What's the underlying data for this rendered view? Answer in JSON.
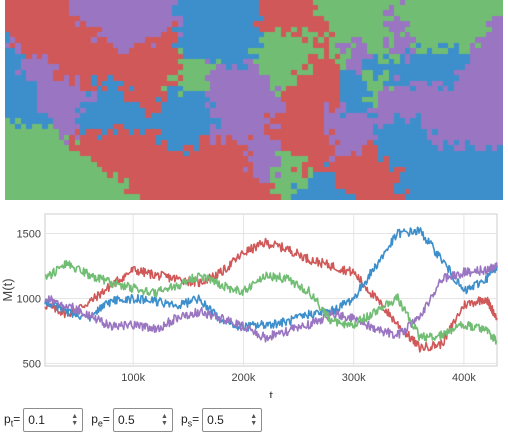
{
  "grid": {
    "palette": [
      "#d05858",
      "#3d8fcc",
      "#9a75c2",
      "#71bd73"
    ],
    "cols": 92,
    "rows": 37
  },
  "chart_data": {
    "type": "line",
    "title": "",
    "xlabel": "t",
    "ylabel": "M(t)",
    "xlim": [
      20000,
      430000
    ],
    "ylim": [
      480,
      1650
    ],
    "x_ticks": [
      100000,
      200000,
      300000,
      400000
    ],
    "x_tick_labels": [
      "100k",
      "200k",
      "300k",
      "400k"
    ],
    "y_ticks": [
      500,
      1000,
      1500
    ],
    "y_tick_labels": [
      "500",
      "1000",
      "1500"
    ],
    "grid": true,
    "legend": "none",
    "series": [
      {
        "color": "#d05858",
        "x": [
          20000,
          40000,
          60000,
          80000,
          100000,
          120000,
          140000,
          160000,
          180000,
          200000,
          220000,
          240000,
          260000,
          280000,
          300000,
          320000,
          340000,
          360000,
          380000,
          400000,
          420000,
          430000
        ],
        "y": [
          950,
          880,
          970,
          1100,
          1220,
          1180,
          1150,
          1120,
          1200,
          1350,
          1430,
          1380,
          1300,
          1250,
          1200,
          1000,
          800,
          620,
          650,
          950,
          1000,
          850
        ]
      },
      {
        "color": "#3d8fcc",
        "x": [
          20000,
          40000,
          60000,
          80000,
          100000,
          120000,
          140000,
          160000,
          180000,
          200000,
          220000,
          240000,
          260000,
          280000,
          300000,
          320000,
          340000,
          360000,
          380000,
          400000,
          420000,
          430000
        ],
        "y": [
          980,
          900,
          850,
          980,
          1000,
          980,
          940,
          1000,
          820,
          780,
          800,
          820,
          880,
          900,
          1000,
          1250,
          1500,
          1520,
          1300,
          1050,
          1150,
          1250
        ]
      },
      {
        "color": "#9a75c2",
        "x": [
          20000,
          40000,
          60000,
          80000,
          100000,
          120000,
          140000,
          160000,
          180000,
          200000,
          220000,
          240000,
          260000,
          280000,
          300000,
          320000,
          340000,
          360000,
          380000,
          400000,
          420000,
          430000
        ],
        "y": [
          1000,
          950,
          870,
          780,
          800,
          760,
          850,
          900,
          850,
          780,
          700,
          750,
          800,
          880,
          850,
          760,
          720,
          850,
          1150,
          1200,
          1220,
          1240
        ]
      },
      {
        "color": "#71bd73",
        "x": [
          20000,
          40000,
          60000,
          80000,
          100000,
          120000,
          140000,
          160000,
          180000,
          200000,
          220000,
          240000,
          260000,
          280000,
          300000,
          320000,
          340000,
          360000,
          380000,
          400000,
          420000,
          430000
        ],
        "y": [
          1150,
          1270,
          1180,
          1120,
          1080,
          1040,
          1100,
          1180,
          1100,
          1050,
          1180,
          1150,
          1050,
          820,
          800,
          900,
          1000,
          700,
          720,
          800,
          750,
          670
        ]
      }
    ]
  },
  "controls": [
    {
      "label_main": "p",
      "label_sub": "t",
      "value": "0.1"
    },
    {
      "label_main": "p",
      "label_sub": "e",
      "value": "0.5"
    },
    {
      "label_main": "p",
      "label_sub": "s",
      "value": "0.5"
    }
  ]
}
